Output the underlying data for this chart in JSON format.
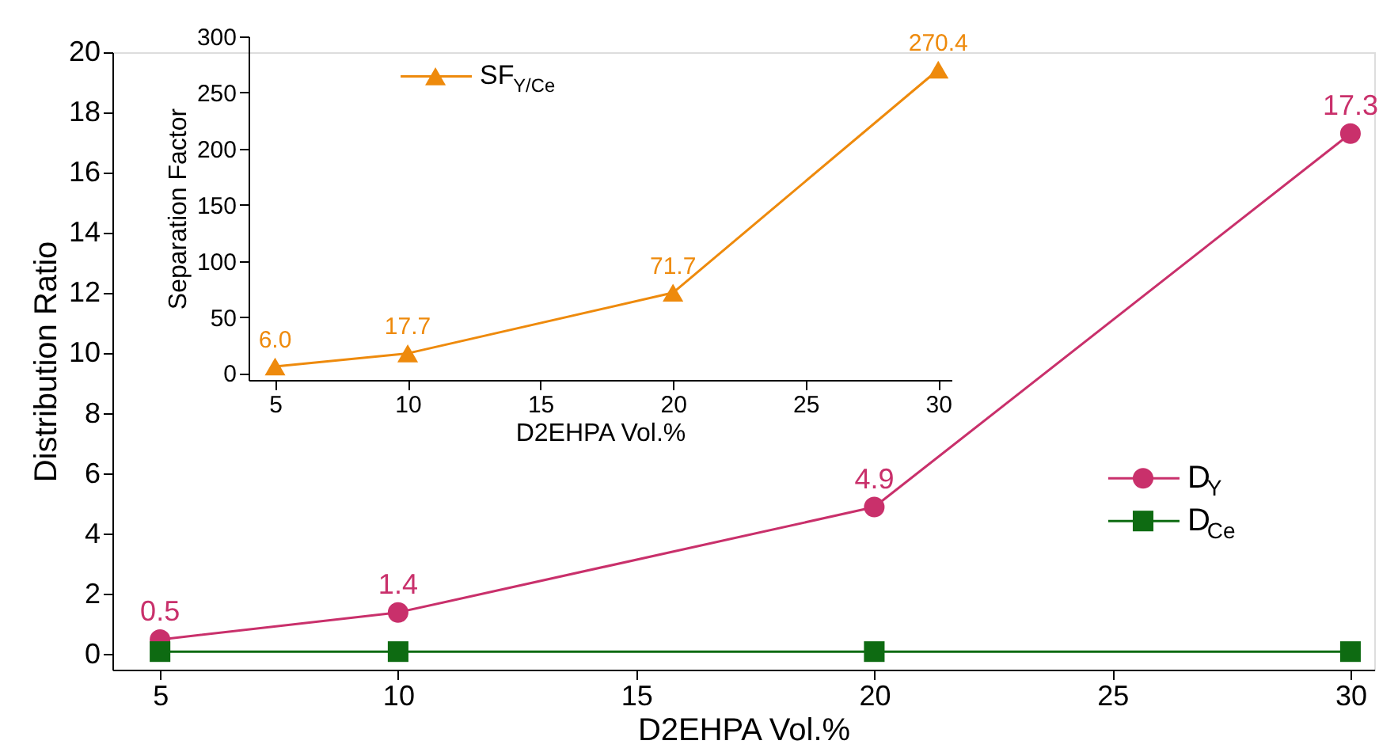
{
  "chart_data": [
    {
      "type": "line",
      "x": [
        5,
        10,
        20,
        30
      ],
      "xlabel": "D2EHPA Vol.%",
      "ylabel": "Distribution Ratio",
      "xlim": [
        4,
        30.5
      ],
      "xticks": [
        5,
        10,
        15,
        20,
        25,
        30
      ],
      "ylim": [
        -0.5,
        20
      ],
      "yticks": [
        0,
        2,
        4,
        6,
        8,
        10,
        12,
        14,
        16,
        18,
        20
      ],
      "legend": "right",
      "grid": false,
      "series": [
        {
          "name": "D$_{Y}$",
          "color": "#c9306b",
          "marker": "circle",
          "values": [
            0.5,
            1.4,
            4.9,
            17.3
          ],
          "value_labels": [
            "0.5",
            "1.4",
            "4.9",
            "17.3"
          ]
        },
        {
          "name": "D$_{Ce}$",
          "color": "#0e6b12",
          "marker": "square",
          "values": [
            0.1,
            0.1,
            0.1,
            0.1
          ]
        }
      ]
    },
    {
      "type": "line",
      "x": [
        5,
        10,
        20,
        30
      ],
      "xlabel": "D2EHPA Vol.%",
      "ylabel": "Separation Factor",
      "xlim": [
        4,
        30.5
      ],
      "xticks": [
        5,
        10,
        15,
        20,
        25,
        30
      ],
      "ylim": [
        -6,
        300
      ],
      "yticks": [
        0,
        50,
        100,
        150,
        200,
        250,
        300
      ],
      "legend": "top left",
      "grid": false,
      "series": [
        {
          "name": "SF$_{Y/Ce}$",
          "color": "#ee8a0c",
          "marker": "triangle",
          "values": [
            6.0,
            17.7,
            71.7,
            270.4
          ],
          "value_labels": [
            "6.0",
            "17.7",
            "71.7",
            "270.4"
          ]
        }
      ]
    }
  ]
}
